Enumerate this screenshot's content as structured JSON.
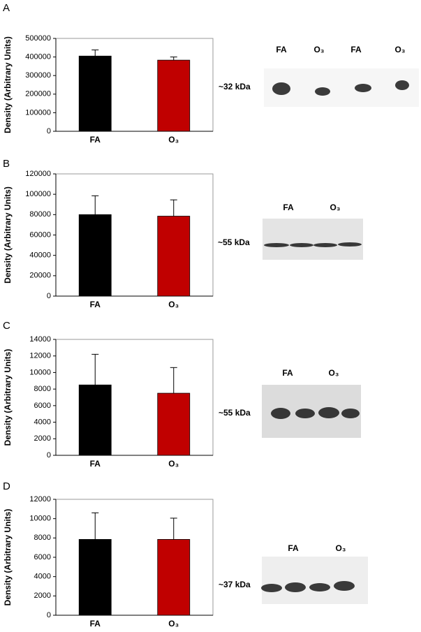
{
  "chart_data": [
    {
      "type": "bar",
      "panel": "A",
      "y_label": "Density (Arbitrary Units)",
      "categories": [
        "FA",
        "O₃"
      ],
      "values": [
        405000,
        383000
      ],
      "errors": [
        33000,
        17000
      ],
      "colors": [
        "#000000",
        "#c00000"
      ],
      "ylim": [
        0,
        500000
      ],
      "yticks": [
        0,
        100000,
        200000,
        300000,
        400000,
        500000
      ],
      "blot_marker": "~32 kDa",
      "blot_lanes": [
        "FA",
        "O₃",
        "FA",
        "O₃"
      ]
    },
    {
      "type": "bar",
      "panel": "B",
      "y_label": "Density (Arbitrary Units)",
      "categories": [
        "FA",
        "O₃"
      ],
      "values": [
        80000,
        78500
      ],
      "errors": [
        18500,
        16000
      ],
      "colors": [
        "#000000",
        "#c00000"
      ],
      "ylim": [
        0,
        120000
      ],
      "yticks": [
        0,
        20000,
        40000,
        60000,
        80000,
        100000,
        120000
      ],
      "blot_marker": "~55 kDa",
      "blot_lanes": [
        "FA",
        "O₃"
      ]
    },
    {
      "type": "bar",
      "panel": "C",
      "y_label": "Density (Arbitrary Units)",
      "categories": [
        "FA",
        "O₃"
      ],
      "values": [
        8500,
        7500
      ],
      "errors": [
        3700,
        3100
      ],
      "colors": [
        "#000000",
        "#c00000"
      ],
      "ylim": [
        0,
        14000
      ],
      "yticks": [
        0,
        2000,
        4000,
        6000,
        8000,
        10000,
        12000,
        14000
      ],
      "blot_marker": "~55 kDa",
      "blot_lanes": [
        "FA",
        "O₃"
      ]
    },
    {
      "type": "bar",
      "panel": "D",
      "y_label": "Density (Arbitrary Units)",
      "categories": [
        "FA",
        "O₃"
      ],
      "values": [
        7850,
        7850
      ],
      "errors": [
        2750,
        2200
      ],
      "colors": [
        "#000000",
        "#c00000"
      ],
      "ylim": [
        0,
        12000
      ],
      "yticks": [
        0,
        2000,
        4000,
        6000,
        8000,
        10000,
        12000
      ],
      "blot_marker": "~37 kDa",
      "blot_lanes": [
        "FA",
        "O₃"
      ]
    }
  ]
}
